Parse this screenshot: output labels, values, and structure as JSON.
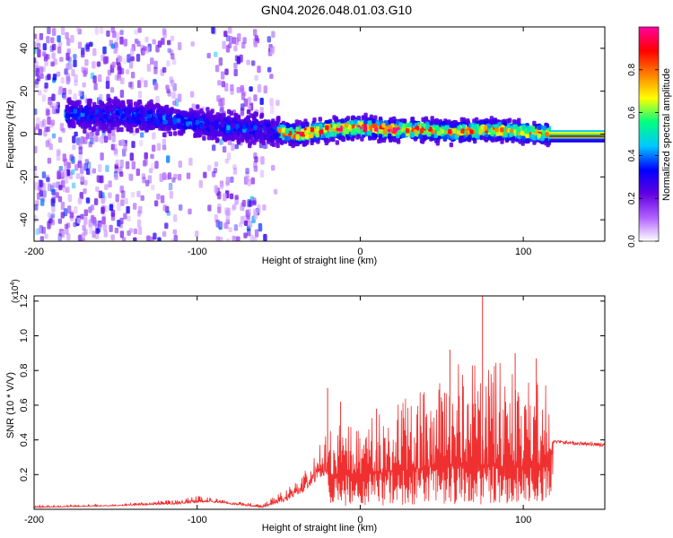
{
  "title": "GN04.2026.048.01.03.G10",
  "chart_data": [
    {
      "type": "heatmap",
      "name": "spectrogram",
      "xlabel": "Height of straight line (km)",
      "ylabel": "Frequency (Hz)",
      "xlim": [
        -200,
        150
      ],
      "ylim": [
        -50,
        50
      ],
      "xticks": [
        -200,
        -100,
        0,
        100
      ],
      "yticks": [
        -40,
        -20,
        0,
        20,
        40
      ],
      "xtick_labels": [
        "-200",
        "-100",
        "0",
        "100"
      ],
      "ytick_labels": [
        "-40",
        "-20",
        "0",
        "20",
        "40"
      ],
      "colorbar": {
        "label": "Normalized spectral amplitude",
        "range": [
          0.0,
          1.0
        ],
        "ticks": [
          0.0,
          0.2,
          0.4,
          0.6,
          0.8
        ],
        "tick_labels": [
          "0.0",
          "0.2",
          "0.4",
          "0.6",
          "0.8"
        ],
        "colors": [
          "#ffffff",
          "#b060ff",
          "#6000e0",
          "#0000ff",
          "#00c8ff",
          "#00ff80",
          "#ffff00",
          "#ff8000",
          "#ff0000",
          "#ff00a0"
        ]
      },
      "ridge": {
        "x": [
          -180,
          -150,
          -120,
          -100,
          -80,
          -60,
          -40,
          -20,
          0,
          20,
          40,
          60,
          80,
          100,
          116
        ],
        "frequency_hz": [
          9,
          9,
          7,
          5,
          3,
          2,
          0,
          2,
          3,
          2,
          2,
          1,
          2,
          1,
          0
        ]
      },
      "tail_after_km": 116,
      "tail_frequency_hz": -1
    },
    {
      "type": "line",
      "name": "snr",
      "xlabel": "Height of straight line (km)",
      "ylabel": "SNR (10 * V/V)",
      "scale_label": "(x10",
      "scale_exponent": "4",
      "xlim": [
        -200,
        150
      ],
      "ylim": [
        0.0,
        1.23
      ],
      "xticks": [
        -200,
        -100,
        0,
        100
      ],
      "yticks": [
        0.2,
        0.4,
        0.6,
        0.8,
        1.0,
        1.2
      ],
      "xtick_labels": [
        "-200",
        "-100",
        "0",
        "100"
      ],
      "ytick_labels": [
        "0.2",
        "0.4",
        "0.6",
        "0.8",
        "1.0",
        "1.2"
      ],
      "color": "#f03030",
      "envelope": {
        "x": [
          -200,
          -150,
          -110,
          -100,
          -90,
          -80,
          -60,
          -45,
          -35,
          -25,
          -20,
          -10,
          0,
          20,
          40,
          60,
          80,
          100,
          116,
          118,
          150
        ],
        "base": [
          0.01,
          0.02,
          0.03,
          0.04,
          0.04,
          0.03,
          0.01,
          0.05,
          0.1,
          0.18,
          0.2,
          0.2,
          0.2,
          0.22,
          0.24,
          0.25,
          0.25,
          0.25,
          0.25,
          0.39,
          0.37
        ],
        "peak": [
          0.02,
          0.03,
          0.06,
          0.08,
          0.07,
          0.05,
          0.03,
          0.12,
          0.2,
          0.38,
          0.45,
          0.5,
          0.52,
          0.62,
          0.72,
          0.85,
          0.88,
          0.8,
          0.7,
          0.41,
          0.39
        ]
      },
      "spikes": [
        {
          "x": -20,
          "value": 0.7
        },
        {
          "x": -12,
          "value": 0.62
        },
        {
          "x": 10,
          "value": 0.58
        },
        {
          "x": 55,
          "value": 0.92
        },
        {
          "x": 75,
          "value": 1.23
        },
        {
          "x": 95,
          "value": 0.9
        },
        {
          "x": 108,
          "value": 0.87
        }
      ]
    }
  ]
}
